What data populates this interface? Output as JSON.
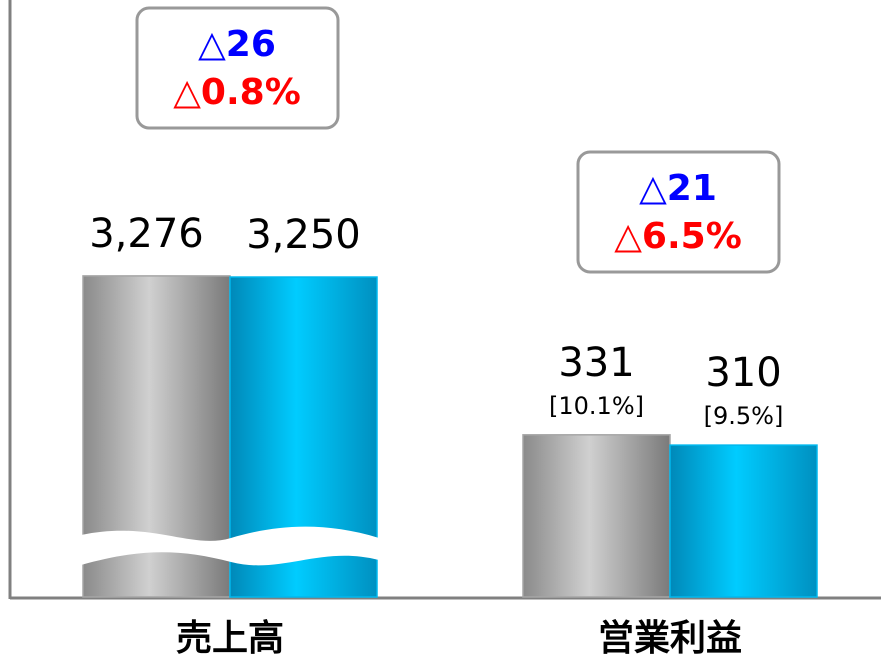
{
  "chart_data": {
    "type": "bar",
    "categories": [
      "売上高",
      "営業利益"
    ],
    "series": [
      {
        "color": "#a6a6a6",
        "values": [
          3276,
          331
        ],
        "value_labels": [
          "3,276",
          "331"
        ],
        "sub_labels": [
          null,
          "[10.1%]"
        ]
      },
      {
        "color": "#00b8ee",
        "values": [
          3250,
          310
        ],
        "value_labels": [
          "3,250",
          "310"
        ],
        "sub_labels": [
          null,
          "[9.5%]"
        ]
      }
    ],
    "annotations": [
      {
        "lines": [
          "△26",
          "△0.8%"
        ]
      },
      {
        "lines": [
          "△21",
          "△6.5%"
        ]
      }
    ]
  }
}
